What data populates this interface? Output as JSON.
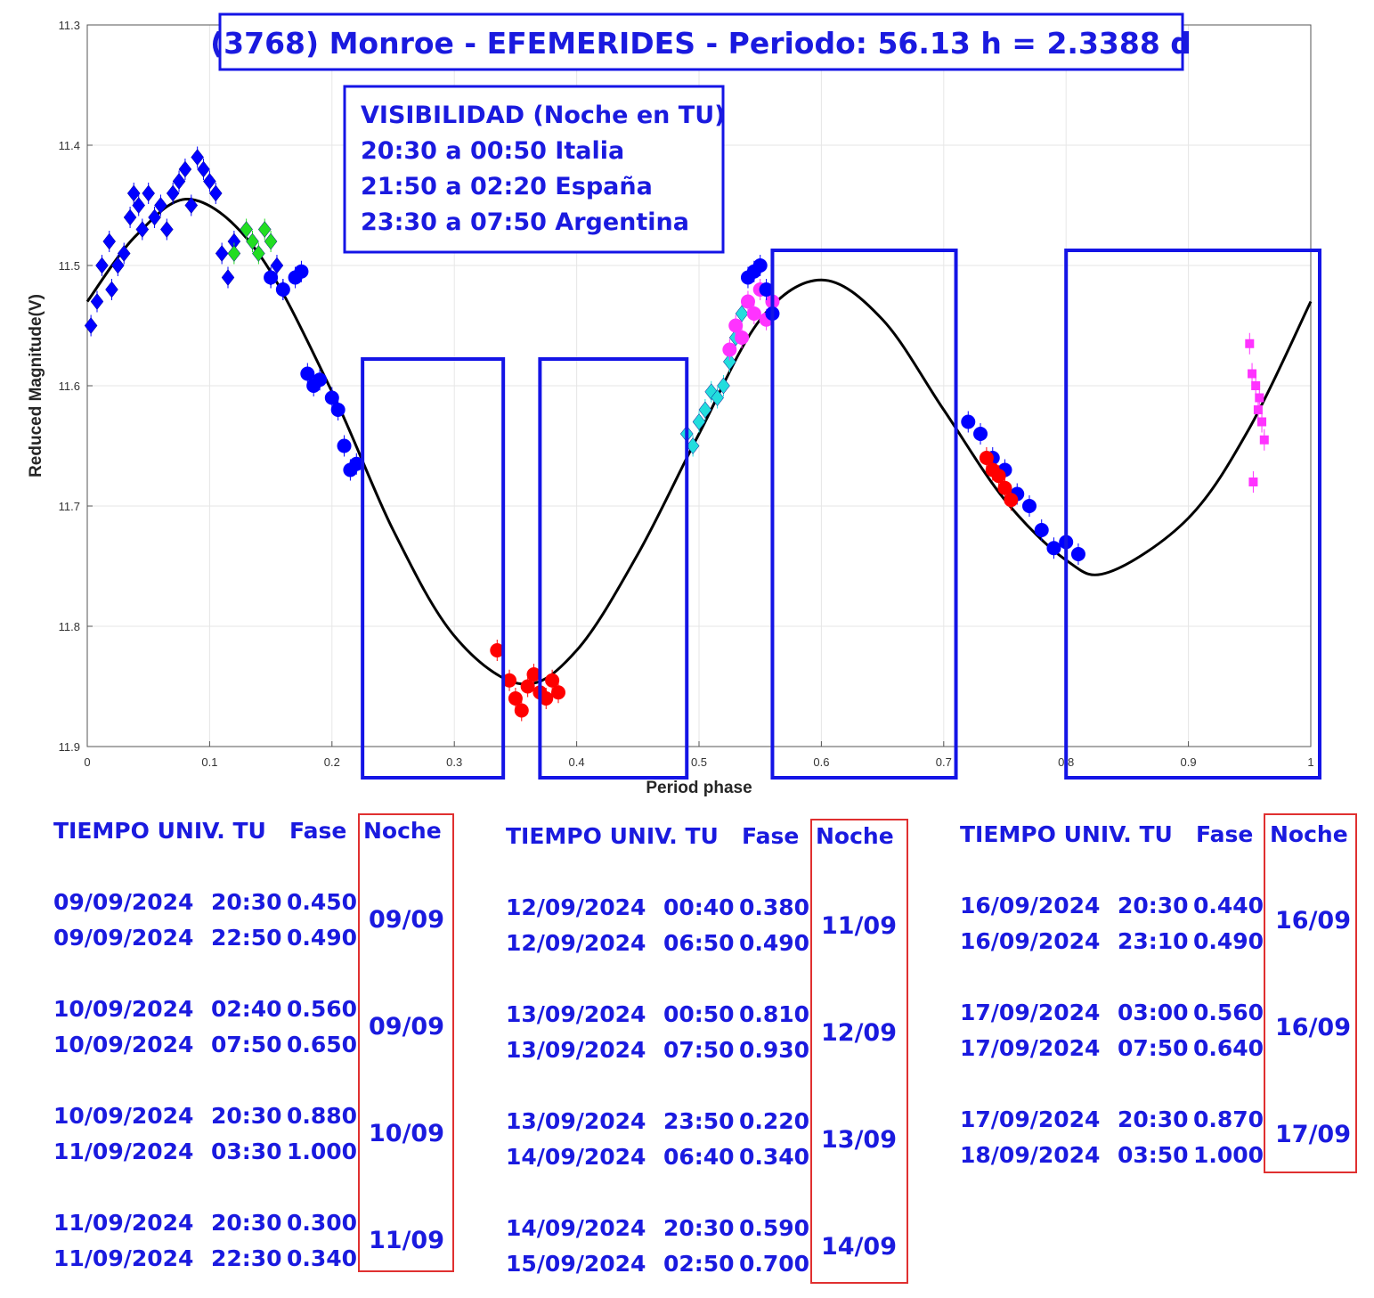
{
  "chart_data": {
    "type": "scatter",
    "title": "(3768) Monroe - EFEMERIDES - Periodo: 56.13 h = 2.3388 d",
    "xlabel": "Period phase",
    "ylabel": "Reduced Magnitude(V)",
    "xlim": [
      0,
      1
    ],
    "ylim": [
      11.3,
      11.9
    ],
    "y_inverted": true,
    "grid": true,
    "x_ticks": [
      0,
      0.1,
      0.2,
      0.3,
      0.4,
      0.5,
      0.6,
      0.7,
      0.8,
      0.9,
      1
    ],
    "x_tick_labels": [
      "0",
      "0.1",
      "0.2",
      "0.3",
      "0.4",
      "0.5",
      "0.6",
      "0.7",
      "0.8",
      "0.9",
      "1"
    ],
    "y_ticks": [
      11.3,
      11.4,
      11.5,
      11.6,
      11.7,
      11.8,
      11.9
    ],
    "y_tick_labels": [
      "11.3",
      "11.4",
      "11.5",
      "11.6",
      "11.7",
      "11.8",
      "11.9"
    ],
    "fit_curve": {
      "name": "Fourier fit",
      "color": "#000000",
      "x": [
        0.0,
        0.04,
        0.085,
        0.14,
        0.2,
        0.25,
        0.3,
        0.355,
        0.4,
        0.45,
        0.5,
        0.55,
        0.6,
        0.65,
        0.7,
        0.75,
        0.8,
        0.835,
        0.9,
        0.95,
        1.0
      ],
      "y": [
        11.53,
        11.475,
        11.445,
        11.49,
        11.605,
        11.72,
        11.808,
        11.848,
        11.82,
        11.74,
        11.64,
        11.545,
        11.512,
        11.545,
        11.62,
        11.695,
        11.745,
        11.755,
        11.71,
        11.635,
        11.53
      ]
    },
    "series": [
      {
        "name": "series-blue-diamond",
        "color": "#0000ff",
        "marker": "diamond",
        "x": [
          0.003,
          0.008,
          0.012,
          0.018,
          0.02,
          0.025,
          0.03,
          0.035,
          0.038,
          0.042,
          0.045,
          0.05,
          0.055,
          0.06,
          0.065,
          0.07,
          0.075,
          0.08,
          0.085,
          0.09,
          0.095,
          0.1,
          0.105,
          0.11,
          0.115,
          0.12,
          0.15,
          0.155,
          0.16
        ],
        "y": [
          11.55,
          11.53,
          11.5,
          11.48,
          11.52,
          11.5,
          11.49,
          11.46,
          11.44,
          11.45,
          11.47,
          11.44,
          11.46,
          11.45,
          11.47,
          11.44,
          11.43,
          11.42,
          11.45,
          11.41,
          11.42,
          11.43,
          11.44,
          11.49,
          11.51,
          11.48,
          11.51,
          11.5,
          11.52
        ]
      },
      {
        "name": "series-green-diamond",
        "color": "#22dd22",
        "marker": "diamond",
        "x": [
          0.12,
          0.13,
          0.135,
          0.14,
          0.145,
          0.15
        ],
        "y": [
          11.49,
          11.47,
          11.48,
          11.49,
          11.47,
          11.48
        ]
      },
      {
        "name": "series-blue-circle",
        "color": "#0000ff",
        "marker": "circle",
        "x": [
          0.15,
          0.16,
          0.17,
          0.175,
          0.18,
          0.185,
          0.19,
          0.2,
          0.205,
          0.21,
          0.215,
          0.22,
          0.72,
          0.73,
          0.74,
          0.75,
          0.76,
          0.77,
          0.78,
          0.79,
          0.8,
          0.81
        ],
        "y": [
          11.51,
          11.52,
          11.51,
          11.505,
          11.59,
          11.6,
          11.595,
          11.61,
          11.62,
          11.65,
          11.67,
          11.665,
          11.63,
          11.64,
          11.66,
          11.67,
          11.69,
          11.7,
          11.72,
          11.735,
          11.73,
          11.74
        ]
      },
      {
        "name": "series-red-circle",
        "color": "#ff0000",
        "marker": "circle",
        "x": [
          0.335,
          0.345,
          0.35,
          0.355,
          0.36,
          0.365,
          0.37,
          0.375,
          0.38,
          0.385,
          0.735,
          0.74,
          0.745,
          0.75,
          0.755
        ],
        "y": [
          11.82,
          11.845,
          11.86,
          11.87,
          11.85,
          11.84,
          11.855,
          11.86,
          11.845,
          11.855,
          11.66,
          11.67,
          11.675,
          11.685,
          11.695
        ]
      },
      {
        "name": "series-cyan-diamond",
        "color": "#22dddd",
        "marker": "diamond",
        "x": [
          0.49,
          0.495,
          0.5,
          0.505,
          0.51,
          0.515,
          0.52,
          0.525,
          0.53,
          0.535
        ],
        "y": [
          11.64,
          11.65,
          11.63,
          11.62,
          11.605,
          11.61,
          11.6,
          11.58,
          11.56,
          11.54
        ]
      },
      {
        "name": "series-magenta-circle",
        "color": "#ff33ff",
        "marker": "circle",
        "x": [
          0.525,
          0.53,
          0.535,
          0.54,
          0.545,
          0.55,
          0.555,
          0.56
        ],
        "y": [
          11.57,
          11.55,
          11.56,
          11.53,
          11.54,
          11.52,
          11.545,
          11.53
        ]
      },
      {
        "name": "series-blue-circle-2",
        "color": "#0000ff",
        "marker": "circle",
        "x": [
          0.54,
          0.545,
          0.55,
          0.555,
          0.56
        ],
        "y": [
          11.51,
          11.505,
          11.5,
          11.52,
          11.54
        ]
      },
      {
        "name": "series-magenta-square",
        "color": "#ff33ff",
        "marker": "square",
        "x": [
          0.95,
          0.952,
          0.955,
          0.957,
          0.96,
          0.962,
          0.958,
          0.953
        ],
        "y": [
          11.565,
          11.59,
          11.6,
          11.62,
          11.63,
          11.645,
          11.61,
          11.68
        ]
      }
    ]
  },
  "visibility_box": {
    "line1": "VISIBILIDAD (Noche en TU)",
    "line2": "20:30 a 00:50 Italia",
    "line3": "21:50 a 02:20 España",
    "line4": "23:30 a 07:50 Argentina"
  },
  "observing_windows_phase": [
    {
      "from": 0.225,
      "to": 0.34
    },
    {
      "from": 0.37,
      "to": 0.49
    },
    {
      "from": 0.56,
      "to": 0.71
    },
    {
      "from": 0.8,
      "to": 1.0
    }
  ],
  "tables": [
    {
      "header": {
        "time": "TIEMPO UNIV. TU",
        "phase": "Fase",
        "night": "Noche"
      },
      "groups": [
        {
          "rows": [
            [
              "09/09/2024",
              "20:30",
              "0.450"
            ],
            [
              "09/09/2024",
              "22:50",
              "0.490"
            ]
          ],
          "night": "09/09"
        },
        {
          "rows": [
            [
              "10/09/2024",
              "02:40",
              "0.560"
            ],
            [
              "10/09/2024",
              "07:50",
              "0.650"
            ]
          ],
          "night": "09/09"
        },
        {
          "rows": [
            [
              "10/09/2024",
              "20:30",
              "0.880"
            ],
            [
              "11/09/2024",
              "03:30",
              "1.000"
            ]
          ],
          "night": "10/09"
        },
        {
          "rows": [
            [
              "11/09/2024",
              "20:30",
              "0.300"
            ],
            [
              "11/09/2024",
              "22:30",
              "0.340"
            ]
          ],
          "night": "11/09"
        }
      ]
    },
    {
      "header": {
        "time": "TIEMPO UNIV. TU",
        "phase": "Fase",
        "night": "Noche"
      },
      "groups": [
        {
          "rows": [
            [
              "12/09/2024",
              "00:40",
              "0.380"
            ],
            [
              "12/09/2024",
              "06:50",
              "0.490"
            ]
          ],
          "night": "11/09"
        },
        {
          "rows": [
            [
              "13/09/2024",
              "00:50",
              "0.810"
            ],
            [
              "13/09/2024",
              "07:50",
              "0.930"
            ]
          ],
          "night": "12/09"
        },
        {
          "rows": [
            [
              "13/09/2024",
              "23:50",
              "0.220"
            ],
            [
              "14/09/2024",
              "06:40",
              "0.340"
            ]
          ],
          "night": "13/09"
        },
        {
          "rows": [
            [
              "14/09/2024",
              "20:30",
              "0.590"
            ],
            [
              "15/09/2024",
              "02:50",
              "0.700"
            ]
          ],
          "night": "14/09"
        }
      ]
    },
    {
      "header": {
        "time": "TIEMPO UNIV. TU",
        "phase": "Fase",
        "night": "Noche"
      },
      "groups": [
        {
          "rows": [
            [
              "16/09/2024",
              "20:30",
              "0.440"
            ],
            [
              "16/09/2024",
              "23:10",
              "0.490"
            ]
          ],
          "night": "16/09"
        },
        {
          "rows": [
            [
              "17/09/2024",
              "03:00",
              "0.560"
            ],
            [
              "17/09/2024",
              "07:50",
              "0.640"
            ]
          ],
          "night": "16/09"
        },
        {
          "rows": [
            [
              "17/09/2024",
              "20:30",
              "0.870"
            ],
            [
              "18/09/2024",
              "03:50",
              "1.000"
            ]
          ],
          "night": "17/09"
        }
      ]
    }
  ],
  "colors": {
    "accent": "#1a1adf",
    "window_box": "#1414e6",
    "night_box": "#e03030"
  }
}
